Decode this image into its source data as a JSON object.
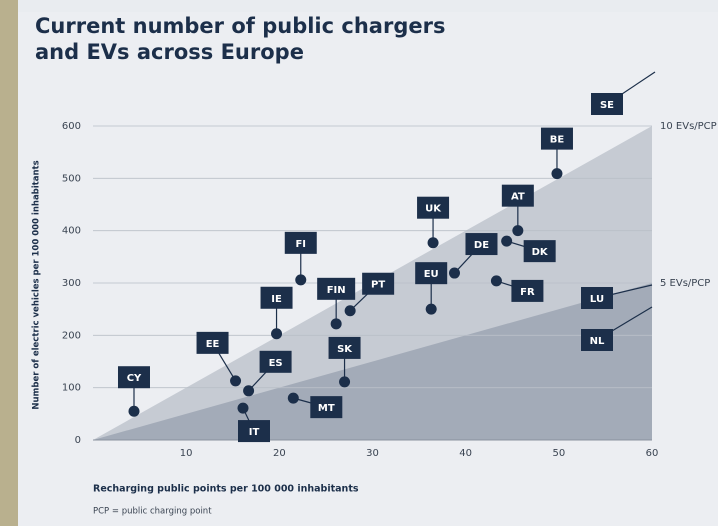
{
  "chart_data": {
    "type": "scatter",
    "title": [
      "Current number of public chargers",
      "and EVs across Europe"
    ],
    "x_label": "Recharging public points per 100 000 inhabitants",
    "y_label": "Number of electric vehicles per 100 000 inhabitants",
    "note": "PCP = public charging point",
    "labels": [
      "CY",
      "EE",
      "ES",
      "IT",
      "IE",
      "FI",
      "MT",
      "FIN",
      "PT",
      "SK",
      "EU",
      "UK",
      "DE",
      "FR",
      "AT",
      "DK",
      "BE"
    ],
    "x": [
      4.4,
      15.3,
      16.7,
      16.1,
      19.7,
      22.3,
      21.5,
      26.1,
      27.6,
      27.0,
      36.3,
      36.5,
      38.8,
      43.3,
      45.6,
      44.4,
      49.8
    ],
    "y": [
      55,
      113,
      94,
      61,
      203,
      306,
      80,
      222,
      247,
      111,
      250,
      377,
      319,
      304,
      400,
      380,
      509
    ],
    "off_chart_labels": [
      "SE",
      "LU",
      "NL"
    ],
    "reference_lines": [
      {
        "label": "10 EVs/PCP",
        "slope": 10,
        "color": "#c6cbd3"
      },
      {
        "label": "5 EVs/PCP",
        "slope": 5,
        "color": "#a3abb8"
      }
    ],
    "color": "#1c2f4a",
    "xlim": [
      0,
      60
    ],
    "ylim": [
      0,
      600
    ],
    "xticks": [
      10,
      20,
      30,
      40,
      50,
      60
    ],
    "yticks": [
      0,
      100,
      200,
      300,
      400,
      500,
      600
    ],
    "grid": true
  }
}
